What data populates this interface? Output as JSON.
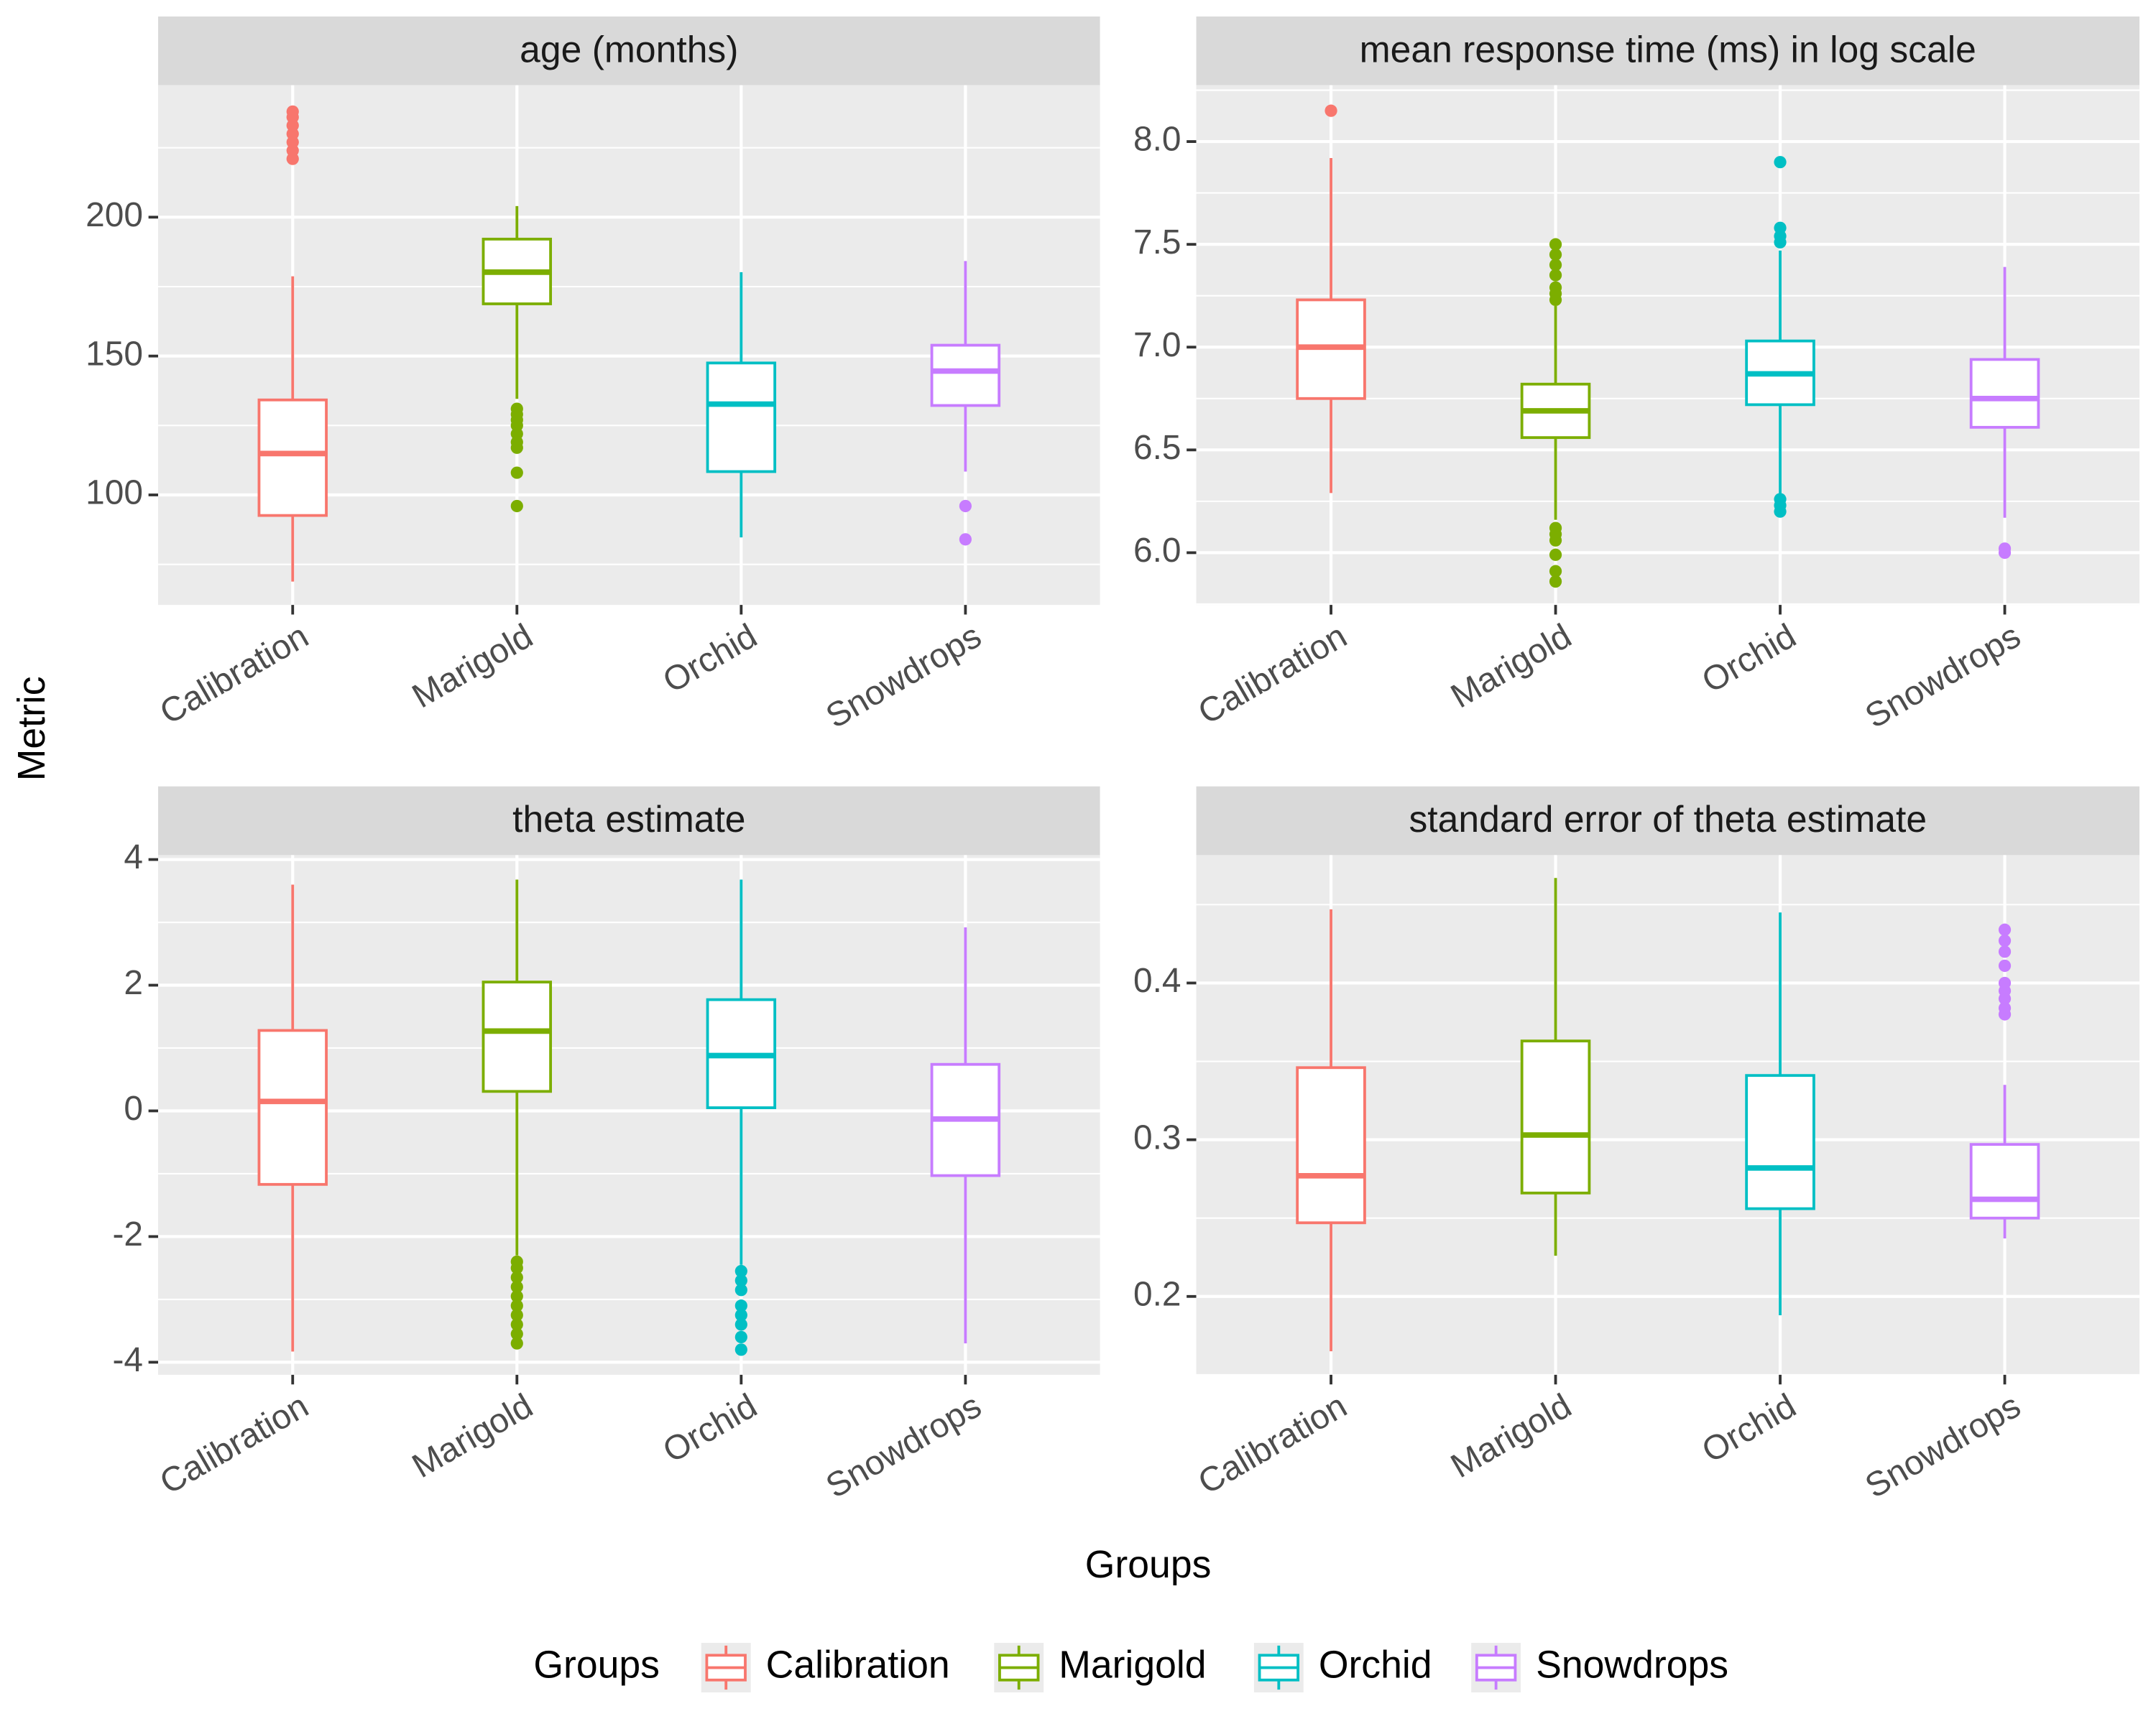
{
  "x_label": "Groups",
  "y_label": "Metric",
  "legend": {
    "title": "Groups",
    "position": "bottom",
    "entries": [
      {
        "name": "Calibration",
        "color": "#F8766D"
      },
      {
        "name": "Marigold",
        "color": "#7CAE00"
      },
      {
        "name": "Orchid",
        "color": "#00BFC4"
      },
      {
        "name": "Snowdrops",
        "color": "#C77CFF"
      }
    ]
  },
  "chart_data": [
    {
      "type": "box",
      "title": "age (months)",
      "categories": [
        "Calibration",
        "Marigold",
        "Orchid",
        "Snowdrops"
      ],
      "ylim": [
        60.4,
        247.5
      ],
      "yticks": [
        100,
        150,
        200
      ],
      "minor_yticks": [
        75,
        125,
        175,
        225
      ],
      "grid": true,
      "boxes": [
        {
          "low": 68.8,
          "q1": 92.6,
          "median": 114.9,
          "q3": 134.2,
          "high": 178.7,
          "outliers": [
            221,
            224,
            227,
            230,
            233,
            236,
            238
          ]
        },
        {
          "low": 134.6,
          "q1": 168.8,
          "median": 180.2,
          "q3": 192.1,
          "high": 204,
          "outliers": [
            131,
            129,
            127,
            125,
            122,
            119,
            117,
            108,
            96
          ]
        },
        {
          "low": 84.7,
          "q1": 108.4,
          "median": 132.7,
          "q3": 147.5,
          "high": 180.2,
          "outliers": []
        },
        {
          "low": 108.4,
          "q1": 132.2,
          "median": 144.6,
          "q3": 153.9,
          "high": 184.2,
          "outliers": [
            96,
            84
          ]
        }
      ]
    },
    {
      "type": "box",
      "title": "mean response time (ms) in log scale",
      "categories": [
        "Calibration",
        "Marigold",
        "Orchid",
        "Snowdrops"
      ],
      "ylim": [
        5.746,
        8.274
      ],
      "yticks": [
        {
          "value": 6,
          "label": "6.0"
        },
        6.5,
        {
          "value": 7,
          "label": "7.0"
        },
        7.5,
        {
          "value": 8,
          "label": "8.0"
        }
      ],
      "minor_yticks": [
        5.75,
        6.25,
        6.75,
        7.25,
        7.75,
        8.25
      ],
      "grid": true,
      "boxes": [
        {
          "low": 6.29,
          "q1": 6.75,
          "median": 7.0,
          "q3": 7.23,
          "high": 7.92,
          "outliers": [
            8.15
          ]
        },
        {
          "low": 6.16,
          "q1": 6.56,
          "median": 6.69,
          "q3": 6.82,
          "high": 7.2,
          "outliers": [
            7.23,
            7.26,
            7.29,
            7.35,
            7.4,
            7.45,
            7.5,
            6.12,
            6.09,
            6.06,
            5.99,
            5.91,
            5.86
          ]
        },
        {
          "low": 6.28,
          "q1": 6.72,
          "median": 6.87,
          "q3": 7.03,
          "high": 7.47,
          "outliers": [
            6.26,
            6.23,
            6.2,
            7.51,
            7.54,
            7.58,
            7.9
          ]
        },
        {
          "low": 6.17,
          "q1": 6.61,
          "median": 6.75,
          "q3": 6.94,
          "high": 7.39,
          "outliers": [
            6.02,
            6.0
          ]
        }
      ]
    },
    {
      "type": "box",
      "title": "theta estimate",
      "categories": [
        "Calibration",
        "Marigold",
        "Orchid",
        "Snowdrops"
      ],
      "ylim": [
        -4.2,
        4.07
      ],
      "yticks": [
        -4,
        -2,
        0,
        2,
        4
      ],
      "minor_yticks": [
        -3,
        -1,
        1,
        3
      ],
      "grid": true,
      "boxes": [
        {
          "low": -3.83,
          "q1": -1.17,
          "median": 0.15,
          "q3": 1.28,
          "high": 3.6,
          "outliers": []
        },
        {
          "low": -2.3,
          "q1": 0.31,
          "median": 1.27,
          "q3": 2.05,
          "high": 3.68,
          "outliers": [
            -2.4,
            -2.5,
            -2.65,
            -2.8,
            -2.95,
            -3.1,
            -3.25,
            -3.4,
            -3.55,
            -3.7
          ]
        },
        {
          "low": -2.45,
          "q1": 0.05,
          "median": 0.88,
          "q3": 1.77,
          "high": 3.68,
          "outliers": [
            -2.55,
            -2.7,
            -2.85,
            -3.1,
            -3.25,
            -3.4,
            -3.6,
            -3.8
          ]
        },
        {
          "low": -3.7,
          "q1": -1.03,
          "median": -0.13,
          "q3": 0.74,
          "high": 2.92,
          "outliers": []
        }
      ]
    },
    {
      "type": "box",
      "title": "standard error of theta estimate",
      "categories": [
        "Calibration",
        "Marigold",
        "Orchid",
        "Snowdrops"
      ],
      "ylim": [
        0.15,
        0.4816
      ],
      "yticks": [
        0.2,
        0.3,
        0.4
      ],
      "minor_yticks": [
        0.15,
        0.25,
        0.35,
        0.45
      ],
      "grid": true,
      "boxes": [
        {
          "low": 0.165,
          "q1": 0.247,
          "median": 0.277,
          "q3": 0.346,
          "high": 0.447,
          "outliers": []
        },
        {
          "low": 0.226,
          "q1": 0.266,
          "median": 0.303,
          "q3": 0.363,
          "high": 0.467,
          "outliers": []
        },
        {
          "low": 0.188,
          "q1": 0.256,
          "median": 0.282,
          "q3": 0.341,
          "high": 0.445,
          "outliers": []
        },
        {
          "low": 0.237,
          "q1": 0.25,
          "median": 0.262,
          "q3": 0.297,
          "high": 0.335,
          "outliers": [
            0.38,
            0.384,
            0.39,
            0.395,
            0.4,
            0.411,
            0.42,
            0.427,
            0.434
          ]
        }
      ]
    }
  ]
}
